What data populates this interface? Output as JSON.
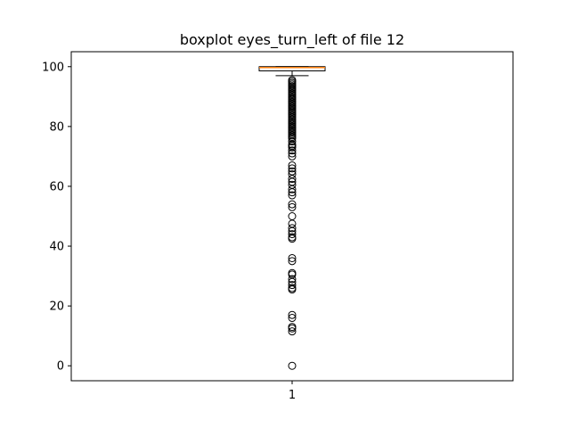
{
  "chart_data": {
    "type": "boxplot",
    "title": "boxplot eyes_turn_left of file 12",
    "xlabel": "",
    "ylabel": "",
    "categories": [
      "1"
    ],
    "ylim": [
      -5,
      105
    ],
    "yticks": [
      0,
      20,
      40,
      60,
      80,
      100
    ],
    "grid": false,
    "boxes": [
      {
        "category": "1",
        "whisker_low": 97,
        "q1": 98.6,
        "median": 99.7,
        "q3": 100,
        "whisker_high": 100,
        "outliers": [
          95.5,
          95,
          94.5,
          94,
          93.5,
          93,
          92.5,
          92,
          91.5,
          91,
          90.5,
          90,
          89.5,
          89,
          88.5,
          88,
          87.5,
          87,
          86.5,
          86,
          85.5,
          85,
          84.5,
          84,
          83.5,
          83,
          82.5,
          82,
          81.5,
          81,
          80.5,
          80,
          79.5,
          79,
          78.5,
          78,
          77.5,
          77,
          76.5,
          76,
          75,
          74,
          73.5,
          73,
          72,
          71,
          70,
          67,
          66,
          65,
          64,
          62.5,
          61.5,
          60.5,
          59,
          58,
          57,
          54,
          53,
          50,
          47.5,
          46,
          45,
          44,
          43,
          42.5,
          36,
          35,
          31,
          30.5,
          29,
          28,
          27,
          26,
          25.5,
          17,
          16,
          13,
          12.5,
          11.5,
          0
        ]
      }
    ],
    "colors": {
      "box": "#000000",
      "median": "#ff7f0e",
      "outlier": "#000000"
    }
  }
}
